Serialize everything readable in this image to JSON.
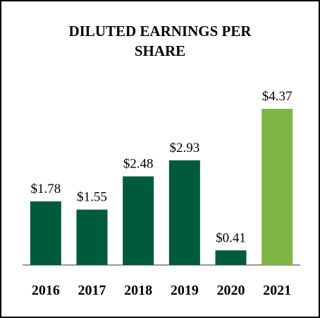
{
  "chart_data": {
    "type": "bar",
    "title": "DILUTED EARNINGS PER SHARE",
    "categories": [
      "2016",
      "2017",
      "2018",
      "2019",
      "2020",
      "2021"
    ],
    "values": [
      1.78,
      1.55,
      2.48,
      2.93,
      0.41,
      4.37
    ],
    "value_labels": [
      "$1.78",
      "$1.55",
      "$2.48",
      "$2.93",
      "$0.41",
      "$4.37"
    ],
    "colors": [
      "#005a3e",
      "#005a3e",
      "#005a3e",
      "#005a3e",
      "#005a3e",
      "#7db642"
    ]
  }
}
